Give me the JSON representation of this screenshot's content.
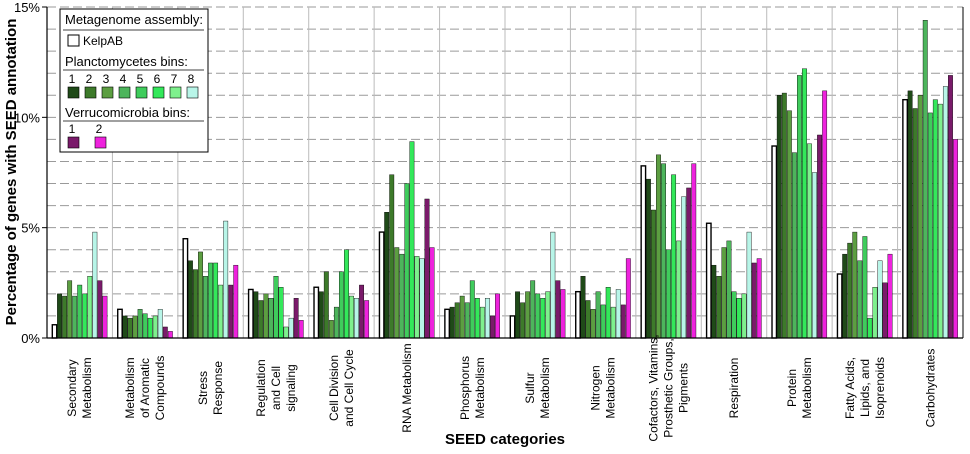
{
  "chart_data": {
    "type": "bar",
    "title": "",
    "xlabel": "SEED categories",
    "ylabel": "Percentage of genes with SEED annotation",
    "ylim": [
      0,
      15
    ],
    "yticks": [
      0,
      5,
      10,
      15
    ],
    "ytick_labels": [
      "0%",
      "5%",
      "10%",
      "15%"
    ],
    "grid": "horizontal dashed at every 1%",
    "legend_position": "top-left",
    "legend": {
      "group1_title": "Metagenome assembly:",
      "group1_items": [
        "KelpAB"
      ],
      "group2_title": "Planctomycetes bins:",
      "group2_items": [
        "1",
        "2",
        "3",
        "4",
        "5",
        "6",
        "7",
        "8"
      ],
      "group3_title": "Verrucomicrobia bins:",
      "group3_items": [
        "1",
        "2"
      ]
    },
    "categories": [
      [
        "Secondary",
        "Metabolism"
      ],
      [
        "Metabolism",
        "of Aromatic",
        "Compounds"
      ],
      [
        "Stress",
        "Response"
      ],
      [
        "Regulation",
        "and Cell",
        "signaling"
      ],
      [
        "Cell Division",
        "and Cell Cycle"
      ],
      [
        "RNA Metabolism"
      ],
      [
        "Phosphorus",
        "Metabolism"
      ],
      [
        "Sulfur",
        "Metabolism"
      ],
      [
        "Nitrogen",
        "Metabolism"
      ],
      [
        "Cofactors, Vitamins,",
        "Prosthetic Groups,",
        "Pigments"
      ],
      [
        "Respiration"
      ],
      [
        "Protein",
        "Metabolism"
      ],
      [
        "Fatty Acids,",
        "Lipids, and",
        "Isoprenoids"
      ],
      [
        "Carbohydrates"
      ]
    ],
    "series": [
      {
        "name": "KelpAB",
        "group": "Metagenome assembly",
        "color": "#ffffff",
        "values": [
          0.6,
          1.3,
          4.5,
          2.2,
          2.3,
          4.8,
          1.3,
          1.0,
          2.1,
          7.8,
          5.2,
          8.7,
          2.9,
          10.8
        ]
      },
      {
        "name": "Planctomycetes 1",
        "group": "Planctomycetes bins",
        "color": "#1f4a18",
        "values": [
          2.0,
          1.0,
          3.5,
          2.1,
          2.1,
          5.7,
          1.4,
          2.1,
          2.8,
          7.2,
          3.3,
          11.0,
          3.8,
          11.2
        ]
      },
      {
        "name": "Planctomycetes 2",
        "group": "Planctomycetes bins",
        "color": "#3d7a2a",
        "values": [
          1.9,
          0.9,
          3.1,
          1.7,
          3.0,
          7.4,
          1.6,
          1.6,
          1.7,
          5.8,
          2.8,
          11.1,
          4.3,
          10.4
        ]
      },
      {
        "name": "Planctomycetes 3",
        "group": "Planctomycetes bins",
        "color": "#5c9e41",
        "values": [
          2.6,
          1.0,
          3.9,
          2.0,
          0.8,
          4.1,
          1.9,
          2.1,
          1.3,
          8.3,
          4.1,
          10.3,
          4.8,
          11.0
        ]
      },
      {
        "name": "Planctomycetes 4",
        "group": "Planctomycetes bins",
        "color": "#4db55c",
        "values": [
          1.9,
          1.3,
          2.8,
          1.8,
          1.4,
          3.8,
          1.6,
          2.6,
          2.1,
          7.9,
          4.4,
          8.4,
          3.5,
          14.4
        ]
      },
      {
        "name": "Planctomycetes 5",
        "group": "Planctomycetes bins",
        "color": "#3fcc5c",
        "values": [
          2.4,
          1.1,
          3.4,
          2.8,
          3.0,
          7.0,
          2.6,
          2.0,
          1.5,
          4.0,
          2.1,
          11.9,
          4.6,
          10.2
        ]
      },
      {
        "name": "Planctomycetes 6",
        "group": "Planctomycetes bins",
        "color": "#33e85a",
        "values": [
          2.0,
          0.9,
          3.4,
          2.3,
          4.0,
          8.9,
          1.8,
          1.8,
          2.3,
          7.4,
          1.8,
          12.2,
          0.9,
          10.8
        ]
      },
      {
        "name": "Planctomycetes 7",
        "group": "Planctomycetes bins",
        "color": "#7ef08d",
        "values": [
          2.8,
          1.0,
          2.4,
          0.5,
          1.9,
          3.7,
          1.4,
          2.1,
          1.4,
          4.4,
          2.0,
          8.8,
          2.3,
          10.6
        ]
      },
      {
        "name": "Planctomycetes 8",
        "group": "Planctomycetes bins",
        "color": "#b8f5e8",
        "values": [
          4.8,
          1.3,
          5.3,
          0.9,
          1.8,
          3.6,
          1.8,
          4.8,
          2.2,
          6.4,
          4.8,
          7.5,
          3.5,
          11.4
        ]
      },
      {
        "name": "Verrucomicrobia 1",
        "group": "Verrucomicrobia bins",
        "color": "#7a1a6a",
        "values": [
          2.6,
          0.5,
          2.4,
          1.8,
          2.4,
          6.3,
          1.0,
          2.6,
          1.5,
          6.8,
          3.4,
          9.2,
          2.5,
          11.9
        ]
      },
      {
        "name": "Verrucomicrobia 2",
        "group": "Verrucomicrobia bins",
        "color": "#ee22dd",
        "values": [
          1.9,
          0.3,
          3.3,
          0.8,
          1.7,
          4.1,
          2.0,
          2.2,
          3.6,
          7.9,
          3.6,
          11.2,
          3.8,
          9.0
        ]
      }
    ]
  }
}
